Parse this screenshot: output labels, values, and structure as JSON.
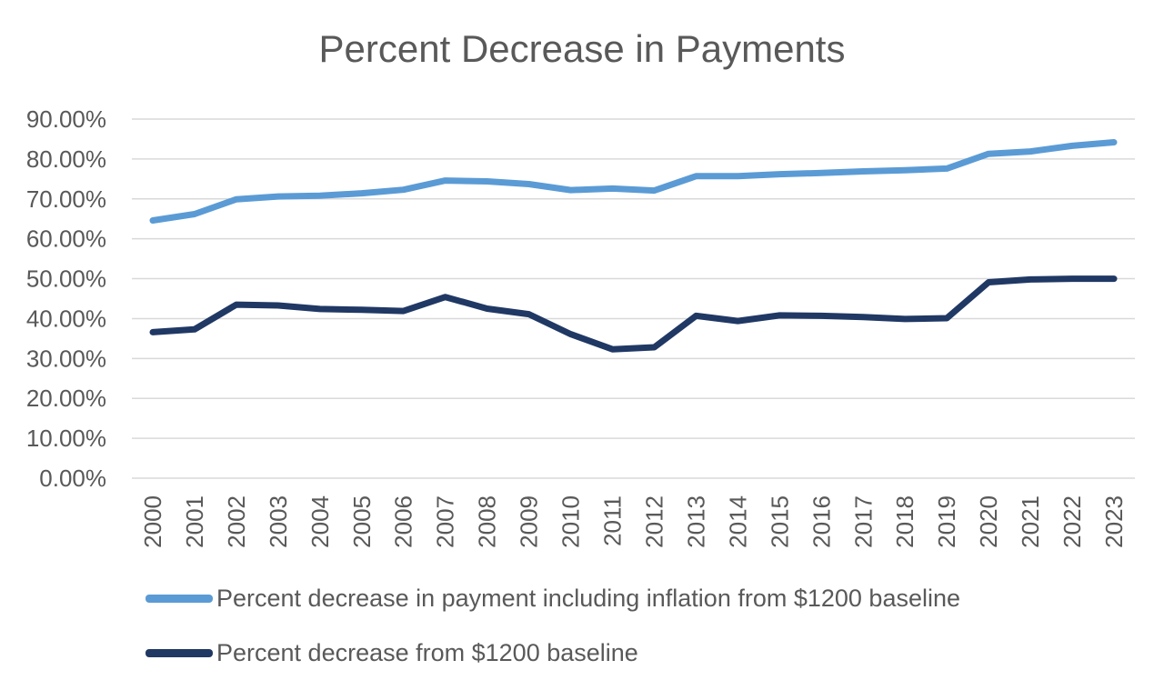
{
  "chart_data": {
    "type": "line",
    "title": "Percent Decrease in Payments",
    "xlabel": "",
    "ylabel": "",
    "categories": [
      "2000",
      "2001",
      "2002",
      "2003",
      "2004",
      "2005",
      "2006",
      "2007",
      "2008",
      "2009",
      "2010",
      "2011",
      "2012",
      "2013",
      "2014",
      "2015",
      "2016",
      "2017",
      "2018",
      "2019",
      "2020",
      "2021",
      "2022",
      "2023"
    ],
    "y_ticks": [
      "0.00%",
      "10.00%",
      "20.00%",
      "30.00%",
      "40.00%",
      "50.00%",
      "60.00%",
      "70.00%",
      "80.00%",
      "90.00%"
    ],
    "ylim": [
      0,
      90
    ],
    "grid": true,
    "legend_position": "bottom",
    "series": [
      {
        "name": "Percent decrease in payment including inflation from $1200 baseline",
        "color": "#5b9bd5",
        "values": [
          64.6,
          66.2,
          69.9,
          70.6,
          70.8,
          71.4,
          72.3,
          74.6,
          74.4,
          73.7,
          72.2,
          72.6,
          72.1,
          75.7,
          75.7,
          76.2,
          76.5,
          76.9,
          77.2,
          77.6,
          81.3,
          81.9,
          83.3,
          84.2
        ]
      },
      {
        "name": "Percent decrease from $1200 baseline",
        "color": "#203864",
        "values": [
          36.6,
          37.3,
          43.5,
          43.3,
          42.4,
          42.2,
          41.9,
          45.4,
          42.5,
          41.1,
          36.1,
          32.3,
          32.8,
          40.7,
          39.4,
          40.8,
          40.7,
          40.4,
          39.9,
          40.1,
          49.1,
          49.8,
          50.0,
          50.0
        ]
      }
    ]
  }
}
